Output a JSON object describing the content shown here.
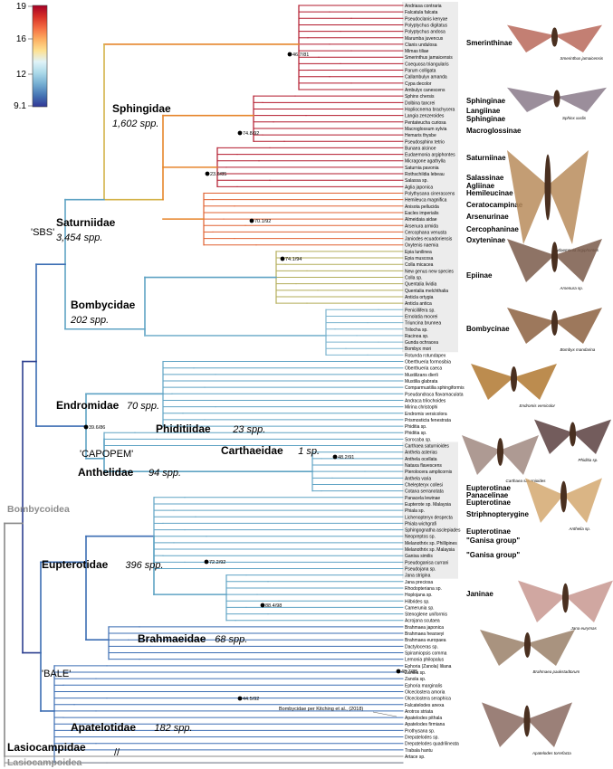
{
  "legend": {
    "max": "19",
    "ticks": [
      "16",
      "12"
    ],
    "min": "9.1",
    "colors": [
      "#a50026",
      "#d73027",
      "#f46d43",
      "#fdae61",
      "#fee090",
      "#e0f3f8",
      "#abd9e9",
      "#74add1",
      "#4575b4",
      "#313695"
    ]
  },
  "families": [
    {
      "key": "sphingidae",
      "name": "Sphingidae",
      "spp": "1,602 spp."
    },
    {
      "key": "saturniidae",
      "name": "Saturniidae",
      "spp": "3,454 spp."
    },
    {
      "key": "bombycidae",
      "name": "Bombycidae",
      "spp": "202 spp."
    },
    {
      "key": "endromidae",
      "name": "Endromidae",
      "spp": "70 spp."
    },
    {
      "key": "phiditiidae",
      "name": "Phiditiidae",
      "spp": "23 spp."
    },
    {
      "key": "carthaeidae",
      "name": "Carthaeidae",
      "spp": "1 sp."
    },
    {
      "key": "anthelidae",
      "name": "Anthelidae",
      "spp": "94 spp."
    },
    {
      "key": "eupterotidae",
      "name": "Eupterotidae",
      "spp": "396 spp."
    },
    {
      "key": "brahmaeidae",
      "name": "Brahmaeidae",
      "spp": "68 spp."
    },
    {
      "key": "apatelotidae",
      "name": "Apatelotidae",
      "spp": "182 spp."
    },
    {
      "key": "lasiocampidae",
      "name": "Lasiocampidae",
      "spp": ""
    }
  ],
  "clades": {
    "sbs": "'SBS'",
    "capopem": "'CAPOPEM'",
    "bale": "'BALE'",
    "bombycoidea": "Bombycoidea",
    "lasiocampoidea": "Lasiocampoidea"
  },
  "node_labels": [
    "46.7/81",
    "74.8/92",
    "23.6/85",
    "70.1/92",
    "74.1/94",
    "39.6/86",
    "48.2/91",
    "72.2/92",
    "88.4/98",
    "48.7/85",
    "44.5/92"
  ],
  "note": "Bombycidae per Kitching et al., (2018)",
  "subfamilies": [
    "Smerinthinae",
    "Sphinginae",
    "Langiinae",
    "Sphinginae",
    "Macroglossinae",
    "Saturniinae",
    "Salassinae",
    "Agliinae",
    "Hemileucinae",
    "Ceratocampinae",
    "Arsenurinae",
    "Cercophaninae",
    "Oxyteninae",
    "Epiinae",
    "Bombycinae",
    "Eupterotinae",
    "Panacelinae",
    "Eupterotinae",
    "Striphnopterygine",
    "Eupterotinae",
    "\"Ganisa group\"",
    "\"Ganisa group\"",
    "Janinae"
  ],
  "taxa": [
    "Andriasa contraria",
    "Falcatula falcata",
    "Pseudoclanis kenyae",
    "Polyptychus digitatus",
    "Polyptychus andosa",
    "Marumba juvencus",
    "Clanis undulosa",
    "Mimas tiliae",
    "Smerinthus jamaicensis",
    "Coequosa triangularis",
    "Parum colligata",
    "Callambulyx amanda",
    "Cypa decolor",
    "Ambulyx canescens",
    "Sphinx chersis",
    "Dolbina tancrei",
    "Hopliocnema brachycera",
    "Langia zenzeroides",
    "Pentateucha curiosa",
    "Macroglossum sylvia",
    "Hemaris thysbe",
    "Pseudosphinx tetrio",
    "Bunaea alcinoe",
    "Eudaemonia argiphontes",
    "Micragone agathylla",
    "Saturnia pavonia",
    "Rothschildia lebeau",
    "Salassa sp.",
    "Aglia japonica",
    "Polythysana cinerascens",
    "Hemileuca magnifica",
    "Anisota pellucida",
    "Eacles imperialis",
    "Almeidaia aidae",
    "Arsenura armida",
    "Cercophana venusta",
    "Janiodes ecuadoriensis",
    "Oxytenis naemia",
    "Epia lunilinea",
    "Epia muscosa",
    "Colla micacea",
    "New genus new species",
    "Colla sp.",
    "Quentalia lividia",
    "Quentalia melchthalia",
    "Anticla ortygia",
    "Anticla antica",
    "Penicillifera sp.",
    "Ernolatia moorei",
    "Triuncina brunnea",
    "Trilocha sp.",
    "Racinoa sp.",
    "Gunda ochracea",
    "Bombyx mori",
    "Rotunda rotundapex",
    "Oberthueria formosibia",
    "Oberthueria caeca",
    "Mustilizans dierli",
    "Mustilia glabrata",
    "Comparmustilia sphingiformis",
    "Pseudandraca flavamaculata",
    "Andraca trilochoides",
    "Mirina christophi",
    "Endromis versicolora",
    "Prismosticta fenestrata",
    "Phiditia sp.",
    "Phiditia sp.",
    "Sorocaba sp.",
    "Carthaea saturnioides",
    "Anthela asterias",
    "Anthela ocellata",
    "Nataxa flavescens",
    "Pterolocera amplicornis",
    "Anthela varia",
    "Chelepteryx collesi",
    "Cotana serranotata",
    "Panacela lewinae",
    "Eupterote sp. Malaysia",
    "Phiala sp.",
    "Lichenopteryx despecta",
    "Phiala wichgrafi",
    "Sphingognatha asclepiades",
    "Neopreptos sp.",
    "Melanothrix sp. Phillipines",
    "Melanothrix sp. Malaysia",
    "Ganisa similis",
    "Pseudoganisa currani",
    "Pseudojana sp.",
    "Jana strigina",
    "Jana preciosa",
    "Rhodopteriana sp.",
    "Hoplojana sp.",
    "Hilbrides sp.",
    "Camerunia sp.",
    "Stenoglene uniformis",
    "Acrojana scutaea",
    "Brahmaea japonica",
    "Brahmaea hearseyi",
    "Brahmaea europaea",
    "Dactyloceras sp.",
    "Spiramiopsis comma",
    "Lemonia philopalus",
    "Ephoria (Zanola) liliana",
    "Zanola sp.",
    "Zanola sp.",
    "Ephoria marginalis",
    "Olceclostera amoria",
    "Olceclostera seraphica",
    "Falcatelodes anexa",
    "Arotros striata",
    "Apatelodes pithala",
    "Apatelodes firmiana",
    "Prothysana sp.",
    "Drepatelodes sp.",
    "Drepatelodes quadrilineata",
    "Trabala hantu",
    "Artace sp."
  ],
  "photo_captions": [
    "Smerinthus jamaicensis",
    "Sphinx xxxlis",
    "Eudaemonia argiphontes",
    "Arsenura sp.",
    "Bombyx mandarina",
    "Endromis versicolor",
    "Carthaea saturnioides",
    "Phiditia sp.",
    "Anthelia sp.",
    "Jana eurymas",
    "Brahmaea paukstadtorum",
    "Apatelodes torrefacta"
  ]
}
